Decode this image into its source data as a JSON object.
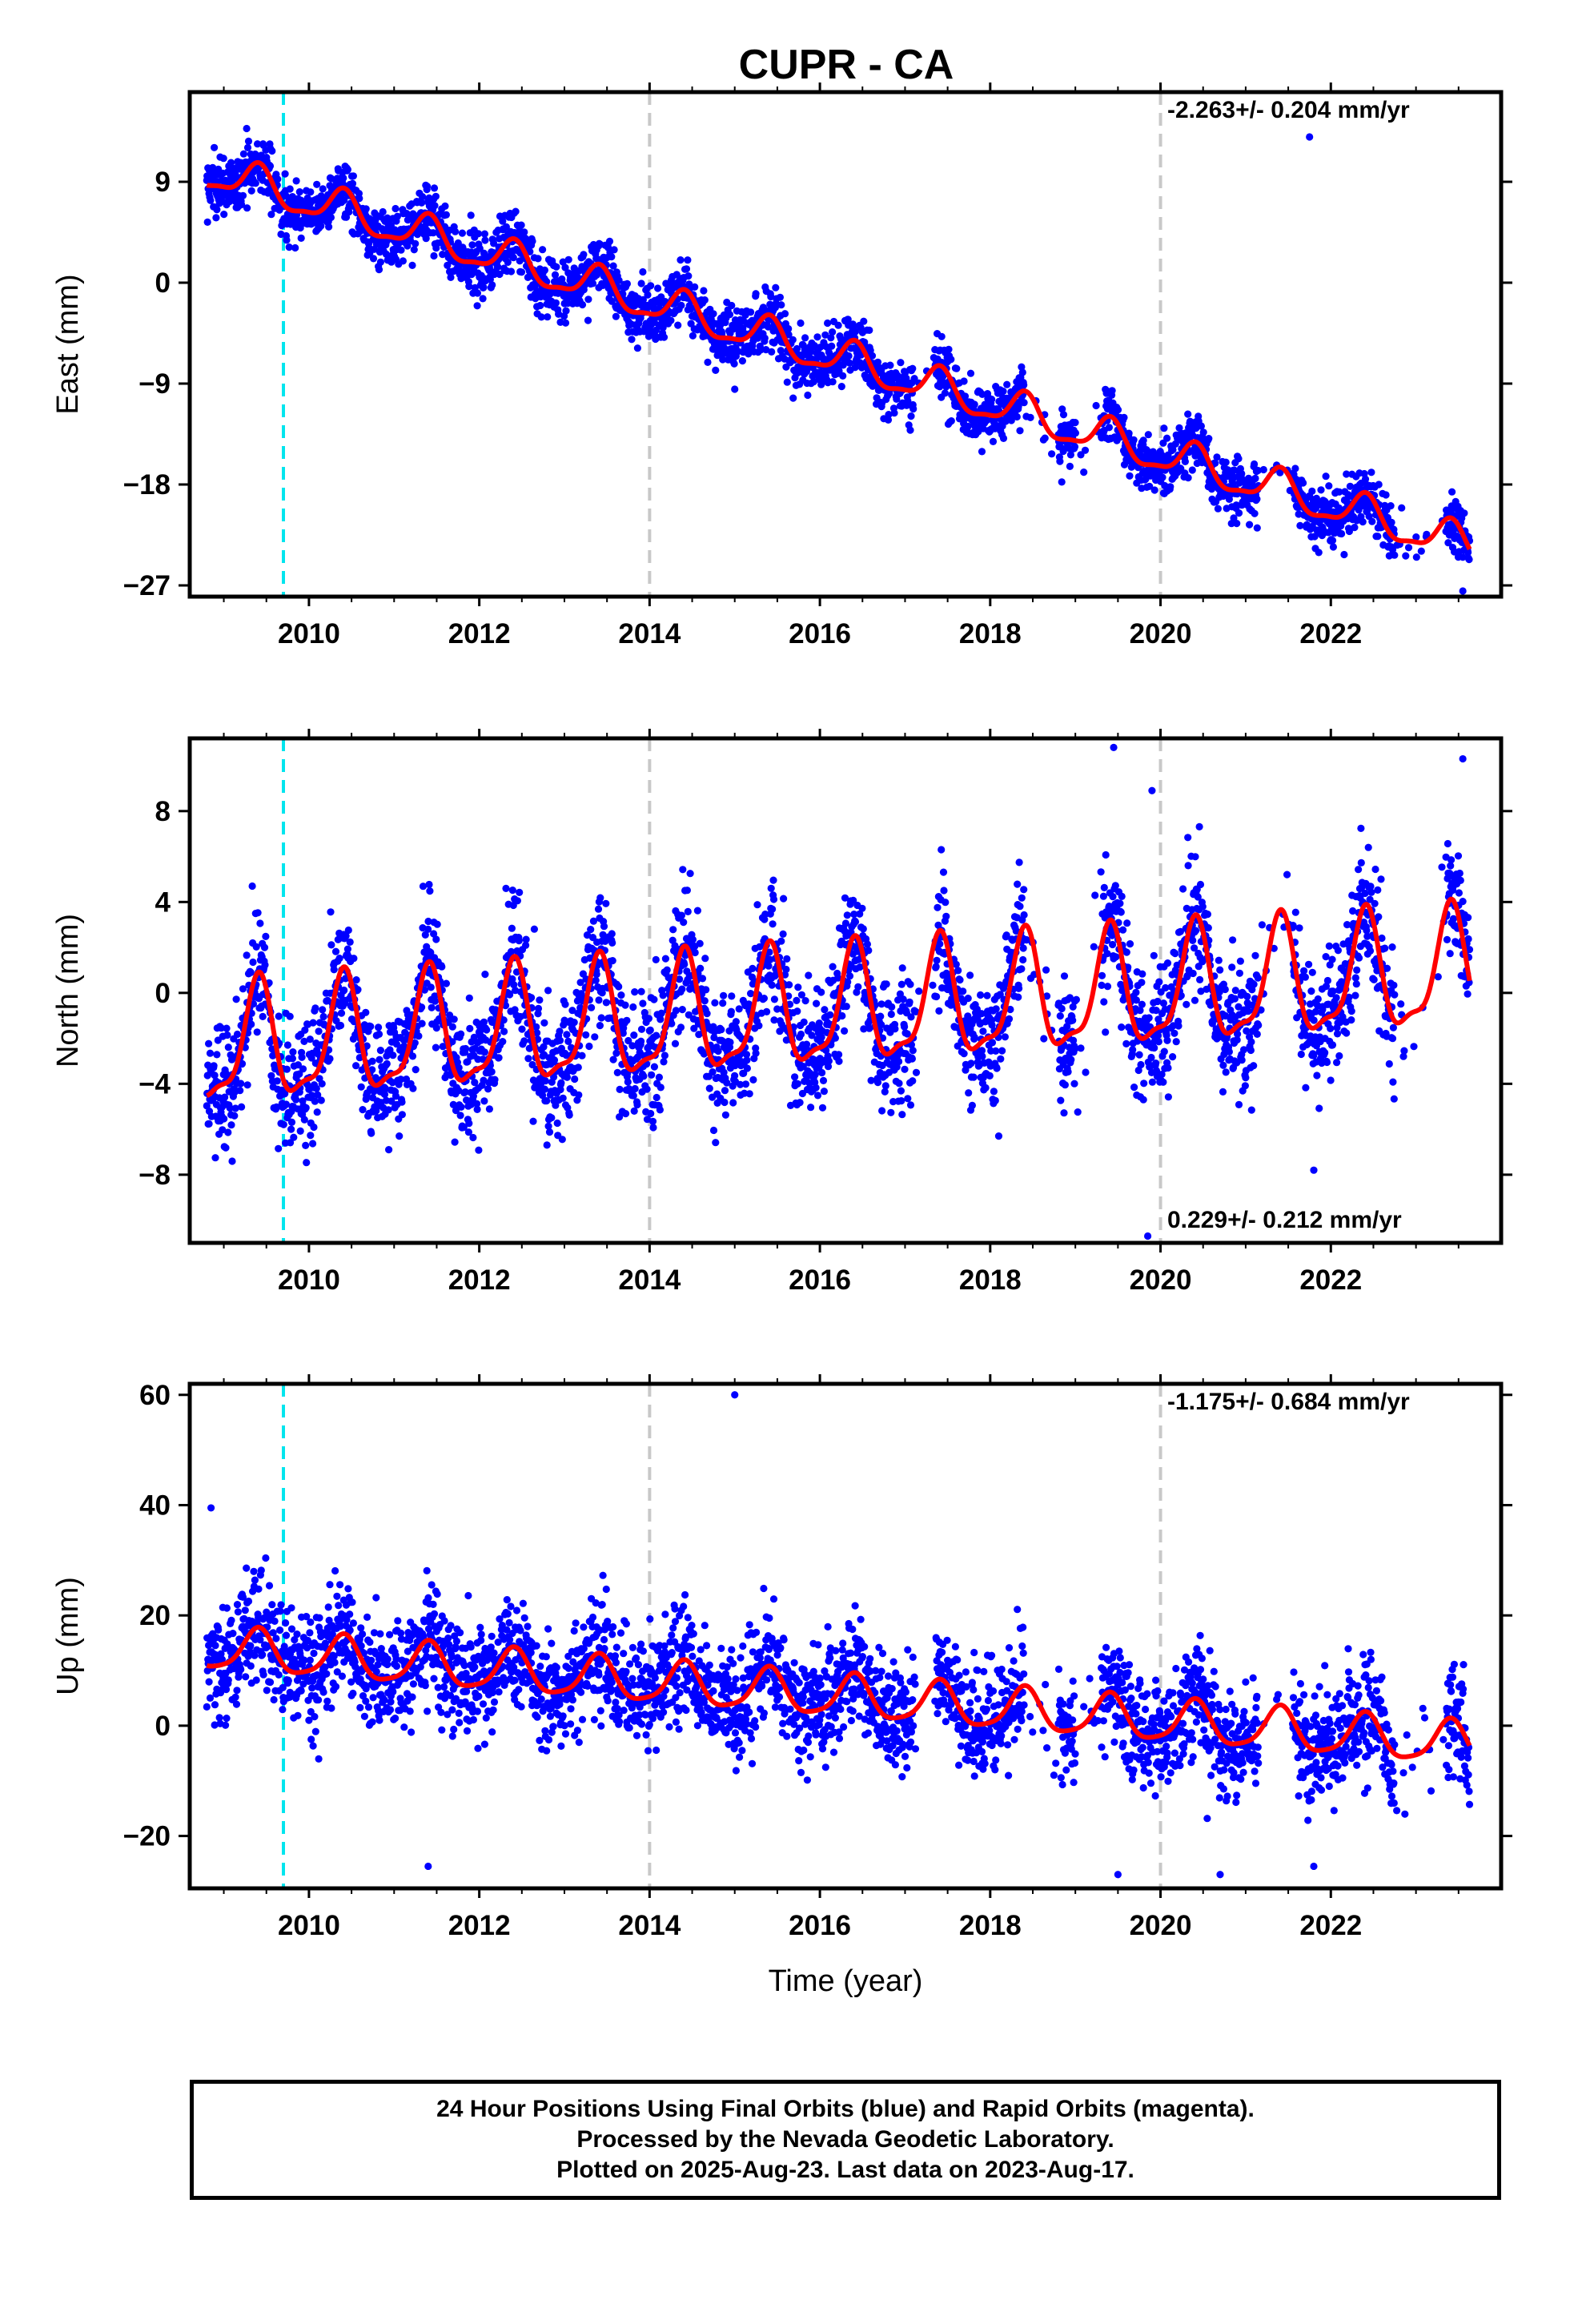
{
  "title": "CUPR - CA",
  "colors": {
    "data": "#0000ff",
    "model": "#ff0000",
    "equipment_change": "#00e5ee",
    "reference": "#c8c8c8"
  },
  "footer": {
    "line1": "24 Hour Positions Using Final Orbits (blue) and Rapid Orbits (magenta).",
    "line2": "Processed by the Nevada Geodetic Laboratory.",
    "line3": "Plotted on 2025-Aug-23. Last data on 2023-Aug-17."
  },
  "chart_data": [
    {
      "type": "scatter",
      "component": "east",
      "ylabel": "East (mm)",
      "xlabel": "",
      "rate": "-2.263+/- 0.204 mm/yr",
      "xlim": [
        2008.6,
        2024.0
      ],
      "ylim": [
        -28,
        17
      ],
      "xticks": [
        2010,
        2012,
        2014,
        2016,
        2018,
        2020,
        2022
      ],
      "yticks": [
        -27,
        -18,
        -9,
        0,
        9
      ],
      "equipment_change_year": 2009.7,
      "reference_lines": [
        2014.0,
        2020.0
      ],
      "data_range": [
        2008.8,
        2023.63
      ],
      "trend": {
        "t0": 2008.8,
        "y0": 10.0,
        "slope": -2.263,
        "annual_amp": 1.6,
        "semiannual_amp": 0.5,
        "noise": 1.3
      },
      "outliers": [
        [
          2021.75,
          13.0
        ],
        [
          2023.45,
          -24.0
        ],
        [
          2023.55,
          -27.5
        ],
        [
          2015.0,
          -9.5
        ]
      ]
    },
    {
      "type": "scatter",
      "component": "north",
      "ylabel": "North (mm)",
      "xlabel": "",
      "rate": "0.229+/- 0.212 mm/yr",
      "xlim": [
        2008.6,
        2024.0
      ],
      "ylim": [
        -11,
        11.2
      ],
      "xticks": [
        2010,
        2012,
        2014,
        2016,
        2018,
        2020,
        2022
      ],
      "yticks": [
        -8,
        -4,
        0,
        4,
        8
      ],
      "equipment_change_year": 2009.7,
      "reference_lines": [
        2014.0,
        2020.0
      ],
      "data_range": [
        2008.8,
        2023.63
      ],
      "trend": {
        "t0": 2008.8,
        "y0": -2.5,
        "slope": 0.229,
        "annual_amp": 2.5,
        "semiannual_amp": 0.8,
        "noise": 1.4
      },
      "outliers": [
        [
          2019.45,
          10.8
        ],
        [
          2019.9,
          8.9
        ],
        [
          2019.85,
          -10.7
        ],
        [
          2018.1,
          -6.3
        ],
        [
          2021.8,
          -7.8
        ],
        [
          2023.55,
          10.3
        ]
      ]
    },
    {
      "type": "scatter",
      "component": "up",
      "ylabel": "Up (mm)",
      "xlabel": "Time (year)",
      "rate": "-1.175+/- 0.684 mm/yr",
      "xlim": [
        2008.6,
        2024.0
      ],
      "ylim": [
        -29.5,
        62
      ],
      "xticks": [
        2010,
        2012,
        2014,
        2016,
        2018,
        2020,
        2022
      ],
      "yticks": [
        -20,
        0,
        20,
        40,
        60
      ],
      "equipment_change_year": 2009.7,
      "reference_lines": [
        2014.0,
        2020.0
      ],
      "data_range": [
        2008.8,
        2023.63
      ],
      "trend": {
        "t0": 2008.8,
        "y0": 14.0,
        "slope": -1.175,
        "annual_amp": 3.8,
        "semiannual_amp": 0.8,
        "noise": 5.0
      },
      "outliers": [
        [
          2008.85,
          39.5
        ],
        [
          2015.0,
          60.0
        ],
        [
          2011.4,
          -25.5
        ],
        [
          2019.5,
          -27.0
        ],
        [
          2020.7,
          -27.0
        ],
        [
          2021.8,
          -25.5
        ]
      ]
    }
  ]
}
